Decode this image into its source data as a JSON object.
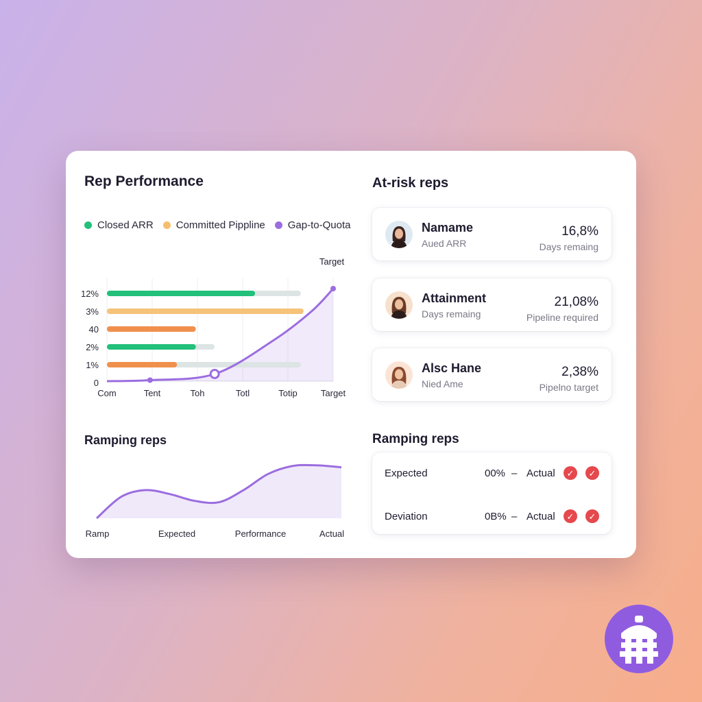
{
  "colors": {
    "green": "#22c07a",
    "orange": "#f0904c",
    "yellow": "#f6c37a",
    "purple": "#9b6ddf",
    "track": "#dde4e4",
    "danger": "#e5484d"
  },
  "performance": {
    "title": "Rep Performance",
    "legend": [
      {
        "label": "Closed ARR",
        "color": "#22c07a"
      },
      {
        "label": "Committed Pippline",
        "color": "#f5bf6e"
      },
      {
        "label": "Gap-to-Quota",
        "color": "#9b6ddf"
      }
    ]
  },
  "chart_data": [
    {
      "type": "bar",
      "title": "",
      "target_label": "Target",
      "row_labels": [
        "12%",
        "3%",
        "40",
        "2%",
        "1%",
        "0"
      ],
      "x_tick_labels": [
        "Com",
        "Tent",
        "Toh",
        "Totl",
        "Totip",
        "Target"
      ],
      "bars": [
        {
          "row": "12%",
          "color": "#22c07a",
          "value": 2.75,
          "track": 3.6
        },
        {
          "row": "3%",
          "color": "#f6c37a",
          "value": 3.65,
          "track": 3.65
        },
        {
          "row": "40",
          "color": "#f0904c",
          "value": 1.65,
          "track": 1.65
        },
        {
          "row": "2%",
          "color": "#22c07a",
          "value": 1.65,
          "track": 2.0
        },
        {
          "row": "1%",
          "color": "#f0904c",
          "value": 1.3,
          "track": 3.6
        }
      ],
      "curve": {
        "series": "Gap-to-Quota",
        "x": [
          0,
          0.8,
          2.0,
          3.1,
          3.8,
          4.2
        ],
        "y": [
          0.0,
          0.05,
          0.35,
          2.0,
          3.4,
          4.5
        ],
        "markers": [
          0.8,
          2.0,
          4.2
        ]
      },
      "xlim": [
        0,
        4.2
      ],
      "ylim": [
        0,
        5
      ]
    },
    {
      "type": "area",
      "title": "",
      "x_tick_labels": [
        "Ramp",
        "Expected",
        "Performance",
        "Actual"
      ],
      "x": [
        0,
        1,
        2,
        3,
        4,
        5,
        6,
        7,
        8,
        9,
        10
      ],
      "y": [
        0.0,
        1.6,
        2.1,
        1.8,
        1.3,
        1.2,
        2.1,
        3.3,
        3.9,
        3.95,
        3.8
      ],
      "ylim": [
        0,
        4.5
      ]
    }
  ],
  "ramping_left": {
    "title": "Ramping reps"
  },
  "at_risk": {
    "title": "At-risk reps",
    "reps": [
      {
        "name": "Namame",
        "sub": "Aued ARR",
        "value": "16,8%",
        "metric": "Days remaing"
      },
      {
        "name": "Attainment",
        "sub": "Days remaing",
        "value": "21,08%",
        "metric": "Pipeline required"
      },
      {
        "name": "Alsc Hane",
        "sub": "Nied Ame",
        "value": "2,38%",
        "metric": "Pipelno target"
      }
    ]
  },
  "ramping_right": {
    "title": "Ramping reps",
    "rows": [
      {
        "label": "Expected",
        "pct": "00%",
        "dash": "–",
        "actual": "Actual"
      },
      {
        "label": "Deviation",
        "pct": "0B%",
        "dash": "–",
        "actual": "Actual"
      }
    ]
  },
  "icons": {
    "check": "check-circle-icon",
    "logo": "lighthouse-logo-icon",
    "avatar": "avatar-portrait"
  }
}
